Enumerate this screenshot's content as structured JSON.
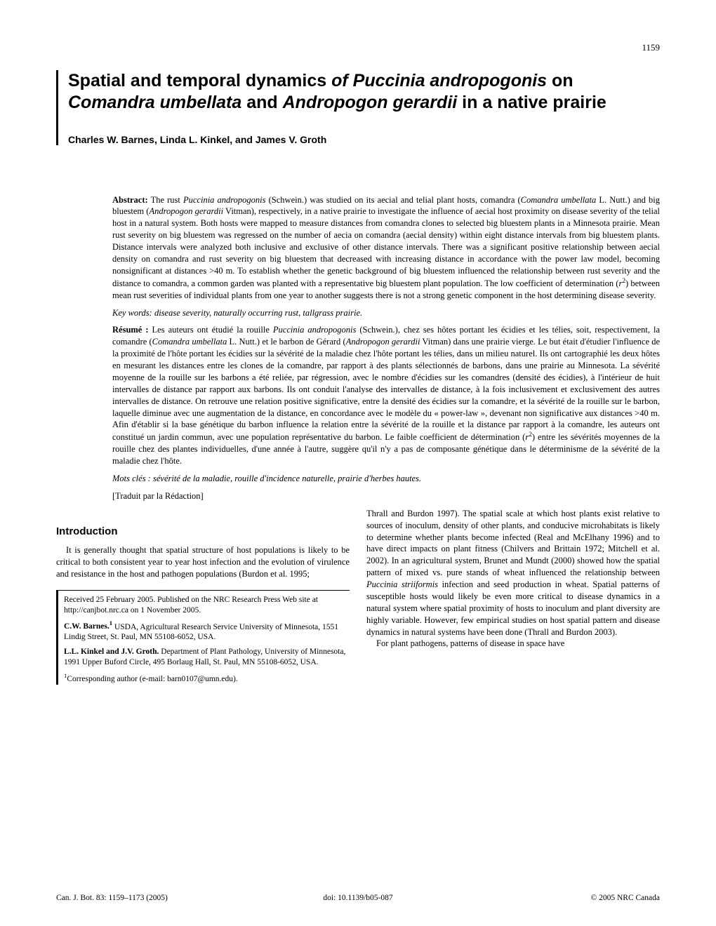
{
  "page_number": "1159",
  "title_html": "Spatial and temporal dynamics <span class=\"ital\">of Puccinia andropogonis</span> on <span class=\"ital\">Comandra umbellata</span> and <span class=\"ital\">Andropogon gerardii</span> in a native prairie",
  "authors": "Charles W. Barnes, Linda L. Kinkel, and James V. Groth",
  "abstract_en_html": "<span class=\"lead\">Abstract:</span> The rust <span class=\"ital\">Puccinia andropogonis</span> (Schwein.) was studied on its aecial and telial plant hosts, comandra (<span class=\"ital\">Comandra umbellata</span> L. Nutt.) and big bluestem (<span class=\"ital\">Andropogon gerardii</span> Vitman), respectively, in a native prairie to investigate the influence of aecial host proximity on disease severity of the telial host in a natural system. Both hosts were mapped to measure distances from comandra clones to selected big bluestem plants in a Minnesota prairie. Mean rust severity on big bluestem was regressed on the number of aecia on comandra (aecial density) within eight distance intervals from big bluestem plants. Distance intervals were analyzed both inclusive and exclusive of other distance intervals. There was a significant positive relationship between aecial density on comandra and rust severity on big bluestem that decreased with increasing distance in accordance with the power law model, becoming nonsignificant at distances >40 m. To establish whether the genetic background of big bluestem influenced the relationship between rust severity and the distance to comandra, a common garden was planted with a representative big bluestem plant population. The low coefficient of determination (<span class=\"ital\">r</span><sup>2</sup>) between mean rust severities of individual plants from one year to another suggests there is not a strong genetic component in the host determining disease severity.",
  "keywords_en_html": "<span class=\"ital\">Key words:</span> disease severity, naturally occurring rust, tallgrass prairie.",
  "abstract_fr_html": "<span class=\"lead\">Résumé :</span> Les auteurs ont étudié la rouille <span class=\"ital\">Puccinia andropogonis</span> (Schwein.), chez ses hôtes portant les écidies et les télies, soit, respectivement, la comandre (<span class=\"ital\">Comandra umbellata</span> L. Nutt.) et le barbon de Gérard (<span class=\"ital\">Andropogon gerardii</span> Vitman) dans une prairie vierge. Le but était d'étudier l'influence de la proximité de l'hôte portant les écidies sur la sévérité de la maladie chez l'hôte portant les télies, dans un milieu naturel. Ils ont cartographié les deux hôtes en mesurant les distances entre les clones de la comandre, par rapport à des plants sélectionnés de barbons, dans une prairie au Minnesota. La sévérité moyenne de la rouille sur les barbons a été reliée, par régression, avec le nombre d'écidies sur les comandres (densité des écidies), à l'intérieur de huit intervalles de distance par rapport aux barbons. Ils ont conduit l'analyse des intervalles de distance, à la fois inclusivement et exclusivement des autres intervalles de distance. On retrouve une relation positive significative, entre la densité des écidies sur la comandre, et la sévérité de la rouille sur le barbon, laquelle diminue avec une augmentation de la distance, en concordance avec le modèle du « power-law », devenant non significative aux distances >40 m. Afin d'établir si la base génétique du barbon influence la relation entre la sévérité de la rouille et la distance par rapport à la comandre, les auteurs ont constitué un jardin commun, avec une population représentative du barbon. Le faible coefficient de détermination (<span class=\"ital\">r</span><sup>2</sup>) entre les sévérités moyennes de la rouille chez des plantes individuelles, d'une année à l'autre, suggère qu'il n'y a pas de composante génétique dans le déterminisme de la sévérité de la maladie chez l'hôte.",
  "keywords_fr_html": "<span class=\"ital\">Mots clés :</span> sévérité de la maladie, rouille d'incidence naturelle, prairie d'herbes hautes.",
  "translated": "[Traduit par la Rédaction]",
  "intro_head": "Introduction",
  "intro_p1": "It is generally thought that spatial structure of host populations is likely to be critical to both consistent year to year host infection and the evolution of virulence and resistance in the host and pathogen populations (Burdon et al. 1995;",
  "col2_p1_html": "Thrall and Burdon 1997). The spatial scale at which host plants exist relative to sources of inoculum, density of other plants, and conducive microhabitats is likely to determine whether plants become infected (Real and McElhany 1996) and to have direct impacts on plant fitness (Chilvers and Brittain 1972; Mitchell et al. 2002). In an agricultural system, Brunet and Mundt (2000) showed how the spatial pattern of mixed vs. pure stands of wheat influenced the relationship between <span class=\"ital\">Puccinia striiformis</span> infection and seed production in wheat. Spatial patterns of susceptible hosts would likely be even more critical to disease dynamics in a natural system where spatial proximity of hosts to inoculum and plant diversity are highly variable. However, few empirical studies on host spatial pattern and disease dynamics in natural systems have been done (Thrall and Burdon 2003).",
  "col2_p2": "For plant pathogens, patterns of disease in space have",
  "received": "Received 25 February 2005. Published on the NRC Research Press Web site at http://canjbot.nrc.ca on 1 November 2005.",
  "aff1_html": "<span class=\"aff-name\">C.W. Barnes.<sup>1</sup></span> USDA, Agricultural Research Service University of Minnesota, 1551 Lindig Street, St. Paul, MN 55108-6052, USA.",
  "aff2_html": "<span class=\"aff-name\">L.L. Kinkel and J.V. Groth.</span> Department of Plant Pathology, University of Minnesota, 1991 Upper Buford Circle, 495 Borlaug Hall, St. Paul, MN 55108-6052, USA.",
  "corresponding_html": "<sup>1</sup>Corresponding author (e-mail: barn0107@umn.edu).",
  "footer_left_html": "Can. J. Bot. <span class=\"lead\">83</span>: 1159–1173 (2005)",
  "footer_center": "doi: 10.1139/b05-087",
  "footer_right": "© 2005 NRC Canada"
}
